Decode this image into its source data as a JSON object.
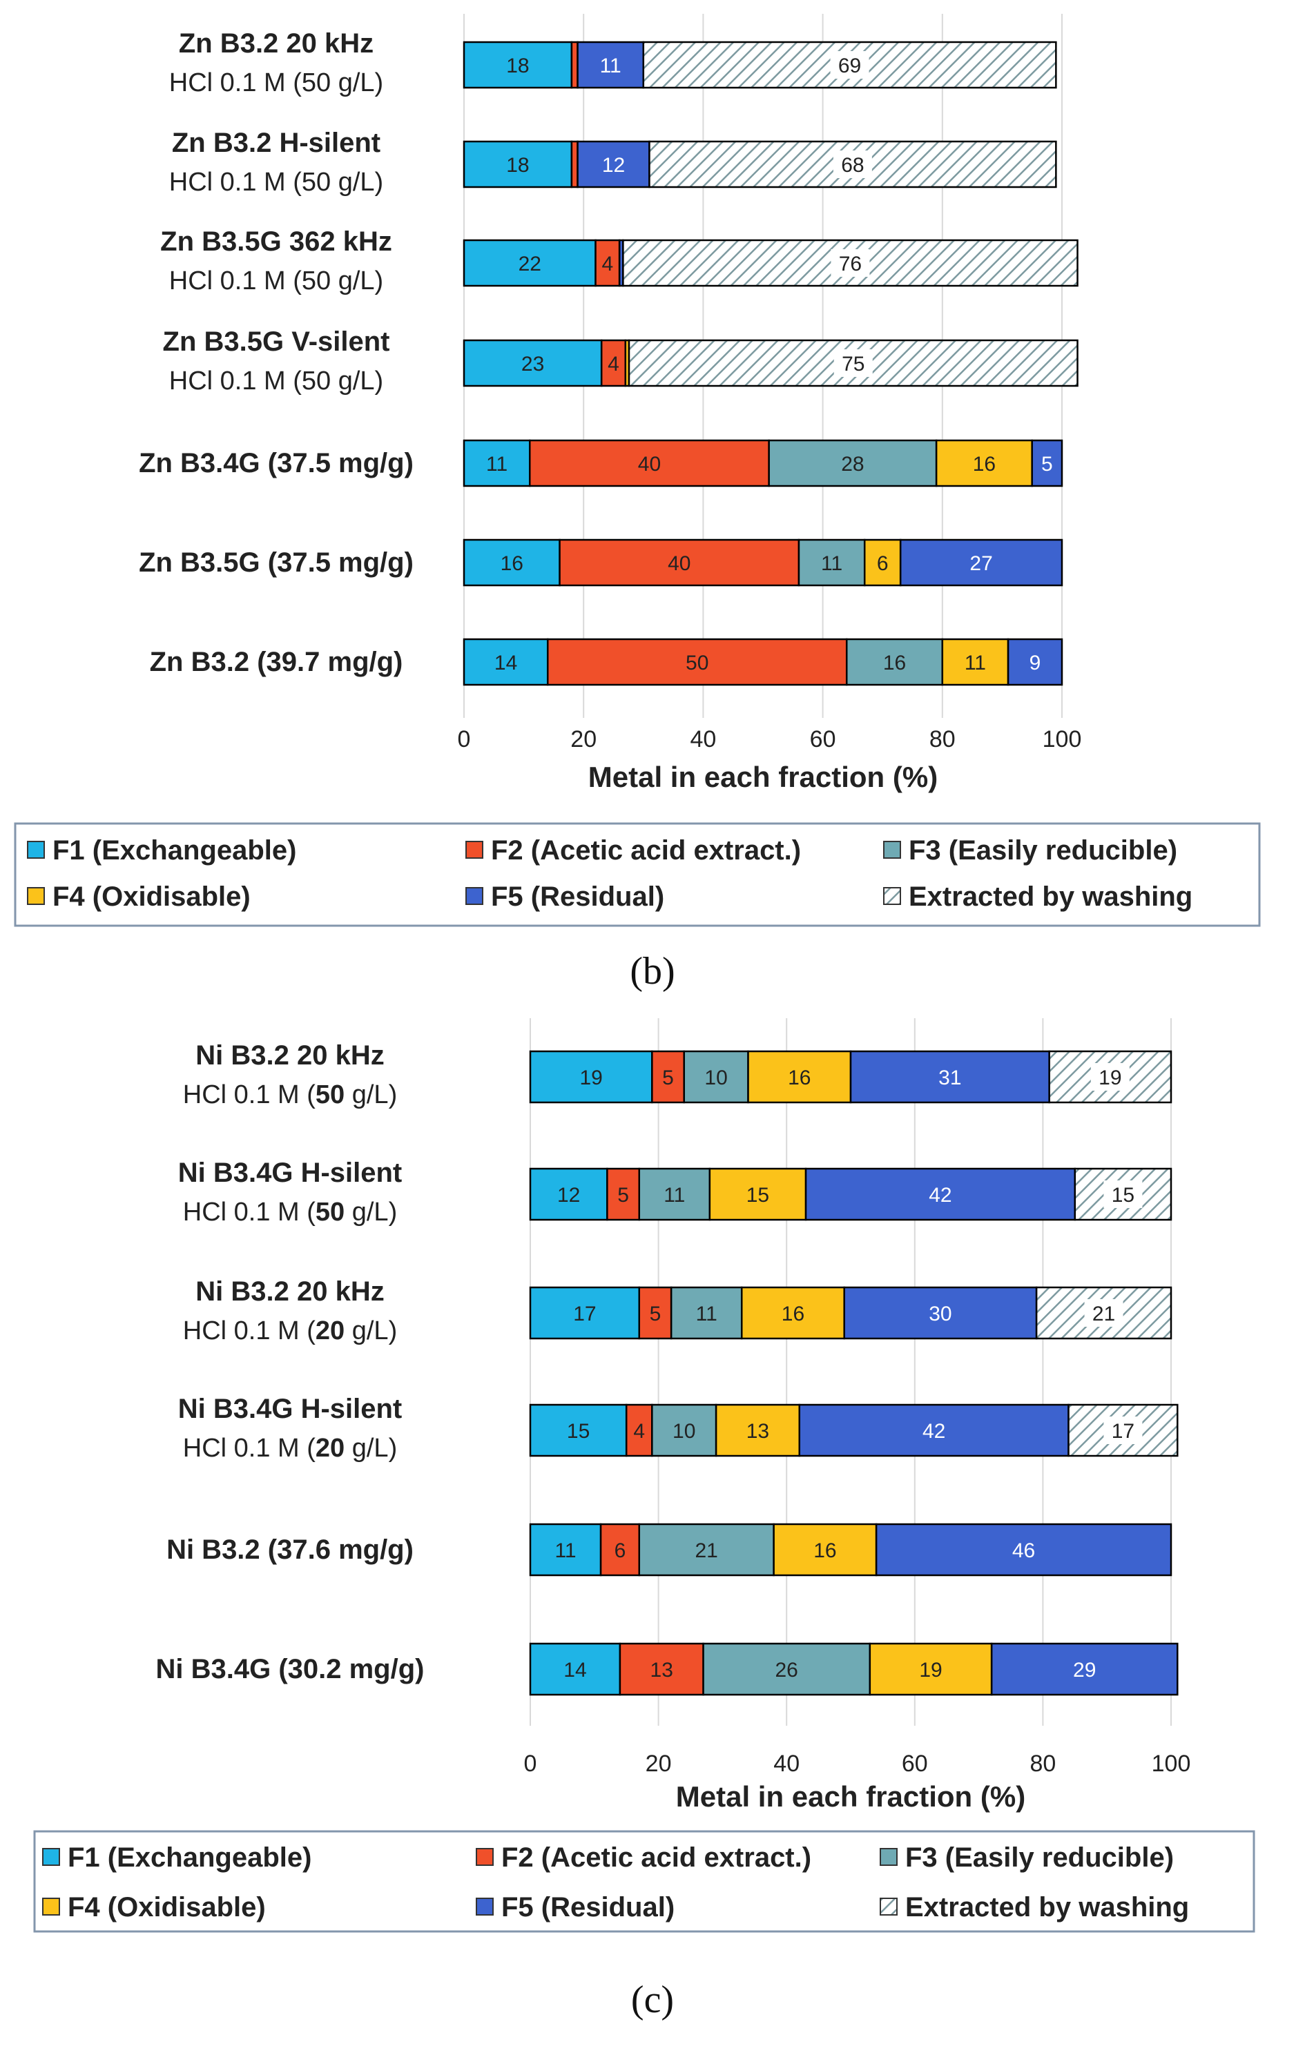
{
  "colors": {
    "F1": "#1fb4e6",
    "F2": "#f0502a",
    "F3": "#6faab4",
    "F4": "#fbc21a",
    "F5": "#3d63cf",
    "washing_fill": "#ffffff",
    "washing_hatch": "#7d9aa0",
    "grid": "#d9d9d9",
    "legend_border": "#8396ac",
    "text": "#222222"
  },
  "chart_data": [
    {
      "type": "bar",
      "orientation": "horizontal",
      "stacked": true,
      "panel_label": "(b)",
      "xlabel": "Metal in each fraction (%)",
      "xlim": [
        0,
        100
      ],
      "xticks": [
        "0",
        "20",
        "40",
        "60",
        "80",
        "100"
      ],
      "grid": true,
      "legend": {
        "placement": "bottom",
        "items": [
          {
            "key": "F1",
            "label": "F1 (Exchangeable)"
          },
          {
            "key": "F2",
            "label": "F2 (Acetic acid extract.)"
          },
          {
            "key": "F3",
            "label": "F3 (Easily reducible)"
          },
          {
            "key": "F4",
            "label": "F4 (Oxidisable)"
          },
          {
            "key": "F5",
            "label": "F5 (Residual)"
          },
          {
            "key": "W",
            "label": "Extracted by washing"
          }
        ]
      },
      "categories": [
        {
          "line1": "Zn B3.2 20 kHz",
          "line2": "HCl 0.1 M (50 g/L)",
          "line2_bold": "",
          "segments": [
            {
              "key": "F1",
              "value": 18,
              "label": "18"
            },
            {
              "key": "F2",
              "value": 1,
              "label": ""
            },
            {
              "key": "F5",
              "value": 11,
              "label": "11"
            },
            {
              "key": "W",
              "value": 69,
              "label": "69"
            }
          ]
        },
        {
          "line1": "Zn B3.2 H-silent",
          "line2": "HCl 0.1 M (50 g/L)",
          "line2_bold": "",
          "segments": [
            {
              "key": "F1",
              "value": 18,
              "label": "18"
            },
            {
              "key": "F2",
              "value": 1,
              "label": ""
            },
            {
              "key": "F5",
              "value": 12,
              "label": "12"
            },
            {
              "key": "W",
              "value": 68,
              "label": "68"
            }
          ]
        },
        {
          "line1": "Zn B3.5G 362 kHz",
          "line2": "HCl 0.1 M (50 g/L)",
          "line2_bold": "",
          "segments": [
            {
              "key": "F1",
              "value": 22,
              "label": "22"
            },
            {
              "key": "F2",
              "value": 4,
              "label": "4"
            },
            {
              "key": "F5",
              "value": 0.6,
              "label": ""
            },
            {
              "key": "W",
              "value": 76,
              "label": "76"
            }
          ]
        },
        {
          "line1": "Zn B3.5G V-silent",
          "line2": "HCl 0.1 M (50 g/L)",
          "line2_bold": "",
          "segments": [
            {
              "key": "F1",
              "value": 23,
              "label": "23"
            },
            {
              "key": "F2",
              "value": 4,
              "label": "4"
            },
            {
              "key": "F4",
              "value": 0.6,
              "label": ""
            },
            {
              "key": "W",
              "value": 75,
              "label": "75"
            }
          ]
        },
        {
          "line1": "Zn B3.4G (37.5 mg/g)",
          "line2": "",
          "line2_bold": "",
          "segments": [
            {
              "key": "F1",
              "value": 11,
              "label": "11"
            },
            {
              "key": "F2",
              "value": 40,
              "label": "40"
            },
            {
              "key": "F3",
              "value": 28,
              "label": "28"
            },
            {
              "key": "F4",
              "value": 16,
              "label": "16"
            },
            {
              "key": "F5",
              "value": 5,
              "label": "5"
            }
          ]
        },
        {
          "line1": "Zn B3.5G (37.5 mg/g)",
          "line2": "",
          "line2_bold": "",
          "segments": [
            {
              "key": "F1",
              "value": 16,
              "label": "16"
            },
            {
              "key": "F2",
              "value": 40,
              "label": "40"
            },
            {
              "key": "F3",
              "value": 11,
              "label": "11"
            },
            {
              "key": "F4",
              "value": 6,
              "label": "6"
            },
            {
              "key": "F5",
              "value": 27,
              "label": "27"
            }
          ]
        },
        {
          "line1": "Zn B3.2 (39.7 mg/g)",
          "line2": "",
          "line2_bold": "",
          "segments": [
            {
              "key": "F1",
              "value": 14,
              "label": "14"
            },
            {
              "key": "F2",
              "value": 50,
              "label": "50"
            },
            {
              "key": "F3",
              "value": 16,
              "label": "16"
            },
            {
              "key": "F4",
              "value": 11,
              "label": "11"
            },
            {
              "key": "F5",
              "value": 9,
              "label": "9"
            }
          ]
        }
      ]
    },
    {
      "type": "bar",
      "orientation": "horizontal",
      "stacked": true,
      "panel_label": "(c)",
      "xlabel": "Metal in each fraction (%)",
      "xlim": [
        0,
        100
      ],
      "xticks": [
        "0",
        "20",
        "40",
        "60",
        "80",
        "100"
      ],
      "grid": true,
      "legend": {
        "placement": "bottom",
        "items": [
          {
            "key": "F1",
            "label": "F1 (Exchangeable)"
          },
          {
            "key": "F2",
            "label": "F2 (Acetic acid extract.)"
          },
          {
            "key": "F3",
            "label": "F3 (Easily reducible)"
          },
          {
            "key": "F4",
            "label": "F4 (Oxidisable)"
          },
          {
            "key": "F5",
            "label": "F5 (Residual)"
          },
          {
            "key": "W",
            "label": "Extracted by washing"
          }
        ]
      },
      "categories": [
        {
          "line1": "Ni B3.2 20 kHz",
          "line2": "HCl 0.1 M (50 g/L)",
          "line2_bold": "50",
          "segments": [
            {
              "key": "F1",
              "value": 19,
              "label": "19"
            },
            {
              "key": "F2",
              "value": 5,
              "label": "5"
            },
            {
              "key": "F3",
              "value": 10,
              "label": "10"
            },
            {
              "key": "F4",
              "value": 16,
              "label": "16"
            },
            {
              "key": "F5",
              "value": 31,
              "label": "31"
            },
            {
              "key": "W",
              "value": 19,
              "label": "19"
            }
          ]
        },
        {
          "line1": "Ni B3.4G H-silent",
          "line2": "HCl 0.1 M (50 g/L)",
          "line2_bold": "50",
          "segments": [
            {
              "key": "F1",
              "value": 12,
              "label": "12"
            },
            {
              "key": "F2",
              "value": 5,
              "label": "5"
            },
            {
              "key": "F3",
              "value": 11,
              "label": "11"
            },
            {
              "key": "F4",
              "value": 15,
              "label": "15"
            },
            {
              "key": "F5",
              "value": 42,
              "label": "42"
            },
            {
              "key": "W",
              "value": 15,
              "label": "15"
            }
          ]
        },
        {
          "line1": "Ni B3.2 20 kHz",
          "line2": "HCl 0.1 M (20 g/L)",
          "line2_bold": "20",
          "segments": [
            {
              "key": "F1",
              "value": 17,
              "label": "17"
            },
            {
              "key": "F2",
              "value": 5,
              "label": "5"
            },
            {
              "key": "F3",
              "value": 11,
              "label": "11"
            },
            {
              "key": "F4",
              "value": 16,
              "label": "16"
            },
            {
              "key": "F5",
              "value": 30,
              "label": "30"
            },
            {
              "key": "W",
              "value": 21,
              "label": "21"
            }
          ]
        },
        {
          "line1": "Ni B3.4G H-silent",
          "line2": "HCl 0.1 M (20 g/L)",
          "line2_bold": "20",
          "segments": [
            {
              "key": "F1",
              "value": 15,
              "label": "15"
            },
            {
              "key": "F2",
              "value": 4,
              "label": "4"
            },
            {
              "key": "F3",
              "value": 10,
              "label": "10"
            },
            {
              "key": "F4",
              "value": 13,
              "label": "13"
            },
            {
              "key": "F5",
              "value": 42,
              "label": "42"
            },
            {
              "key": "W",
              "value": 17,
              "label": "17"
            }
          ]
        },
        {
          "line1": "Ni B3.2 (37.6 mg/g)",
          "line2": "",
          "line2_bold": "",
          "segments": [
            {
              "key": "F1",
              "value": 11,
              "label": "11"
            },
            {
              "key": "F2",
              "value": 6,
              "label": "6"
            },
            {
              "key": "F3",
              "value": 21,
              "label": "21"
            },
            {
              "key": "F4",
              "value": 16,
              "label": "16"
            },
            {
              "key": "F5",
              "value": 46,
              "label": "46"
            }
          ]
        },
        {
          "line1": "Ni B3.4G (30.2 mg/g)",
          "line2": "",
          "line2_bold": "",
          "segments": [
            {
              "key": "F1",
              "value": 14,
              "label": "14"
            },
            {
              "key": "F2",
              "value": 13,
              "label": "13"
            },
            {
              "key": "F3",
              "value": 26,
              "label": "26"
            },
            {
              "key": "F4",
              "value": 19,
              "label": "19"
            },
            {
              "key": "F5",
              "value": 29,
              "label": "29"
            }
          ]
        }
      ]
    }
  ]
}
